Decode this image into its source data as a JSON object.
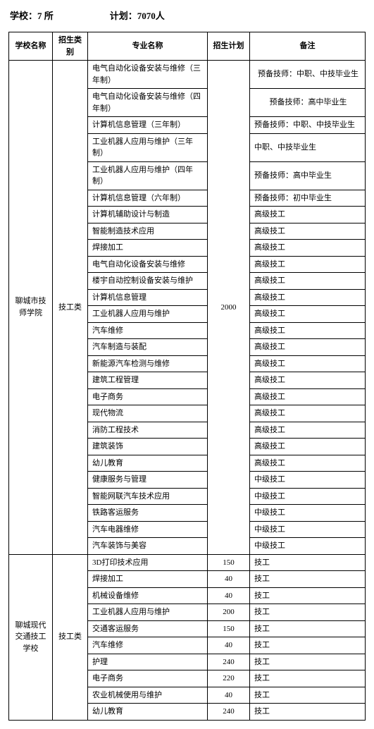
{
  "header": {
    "schools_label": "学校：7 所",
    "plan_label": "计划：7070人"
  },
  "columns": {
    "school": "学校名称",
    "type": "招生类别",
    "major": "专业名称",
    "plan": "招生计划",
    "remark": "备注"
  },
  "school1": {
    "name": "聊城市技师学院",
    "type": "技工类",
    "plan": "2000",
    "rows": [
      {
        "major": "电气自动化设备安装与维修（三年制）",
        "remark": "预备技师：中职、中技毕业生"
      },
      {
        "major": "电气自动化设备安装与维修（四年制）",
        "remark": "预备技师：高中毕业生"
      },
      {
        "major": "计算机信息管理（三年制）",
        "remark": "预备技师：中职、中技毕业生"
      },
      {
        "major": "工业机器人应用与维护（三年制）",
        "remark": "中职、中技毕业生"
      },
      {
        "major": "工业机器人应用与维护（四年制）",
        "remark": "预备技师：高中毕业生"
      },
      {
        "major": "计算机信息管理（六年制）",
        "remark": "预备技师：初中毕业生"
      },
      {
        "major": "计算机辅助设计与制造",
        "remark": "高级技工"
      },
      {
        "major": "智能制造技术应用",
        "remark": "高级技工"
      },
      {
        "major": "焊接加工",
        "remark": "高级技工"
      },
      {
        "major": "电气自动化设备安装与维修",
        "remark": "高级技工"
      },
      {
        "major": "楼宇自动控制设备安装与维护",
        "remark": "高级技工"
      },
      {
        "major": "计算机信息管理",
        "remark": "高级技工"
      },
      {
        "major": "工业机器人应用与维护",
        "remark": "高级技工"
      },
      {
        "major": "汽车维修",
        "remark": "高级技工"
      },
      {
        "major": "汽车制造与装配",
        "remark": "高级技工"
      },
      {
        "major": "新能源汽车检测与维修",
        "remark": "高级技工"
      },
      {
        "major": "建筑工程管理",
        "remark": "高级技工"
      },
      {
        "major": "电子商务",
        "remark": "高级技工"
      },
      {
        "major": "现代物流",
        "remark": "高级技工"
      },
      {
        "major": "消防工程技术",
        "remark": "高级技工"
      },
      {
        "major": "建筑装饰",
        "remark": "高级技工"
      },
      {
        "major": "幼儿教育",
        "remark": "高级技工"
      },
      {
        "major": "健康服务与管理",
        "remark": "中级技工"
      },
      {
        "major": "智能网联汽车技术应用",
        "remark": "中级技工"
      },
      {
        "major": "铁路客运服务",
        "remark": "中级技工"
      },
      {
        "major": "汽车电器维修",
        "remark": "中级技工"
      },
      {
        "major": "汽车装饰与美容",
        "remark": "中级技工"
      }
    ]
  },
  "school2": {
    "name": "聊城现代交通技工学校",
    "type": "技工类",
    "rows": [
      {
        "major": "3D打印技术应用",
        "plan": "150",
        "remark": "技工"
      },
      {
        "major": "焊接加工",
        "plan": "40",
        "remark": "技工"
      },
      {
        "major": "机械设备维修",
        "plan": "40",
        "remark": "技工"
      },
      {
        "major": "工业机器人应用与维护",
        "plan": "200",
        "remark": "技工"
      },
      {
        "major": "交通客运服务",
        "plan": "150",
        "remark": "技工"
      },
      {
        "major": "汽车维修",
        "plan": "40",
        "remark": "技工"
      },
      {
        "major": "护理",
        "plan": "240",
        "remark": "技工"
      },
      {
        "major": "电子商务",
        "plan": "220",
        "remark": "技工"
      },
      {
        "major": "农业机械使用与维护",
        "plan": "40",
        "remark": "技工"
      },
      {
        "major": "幼儿教育",
        "plan": "240",
        "remark": "技工"
      }
    ]
  }
}
